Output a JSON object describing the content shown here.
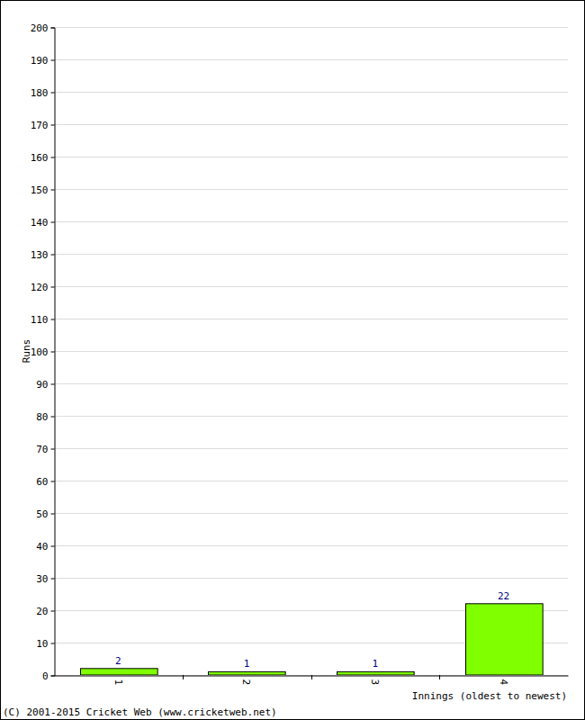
{
  "chart_data": {
    "type": "bar",
    "x_label": "Innings (oldest to newest)",
    "y_label": "Runs",
    "annotation": "(C) 2001-2015 Cricket Web (www.cricketweb.net)",
    "categories": [
      "1",
      "2",
      "3",
      "4"
    ],
    "values": [
      2,
      1,
      1,
      22
    ],
    "color": "#80ff00",
    "ylim": [
      0,
      200
    ],
    "yticks": [
      0,
      10,
      20,
      30,
      40,
      50,
      60,
      70,
      80,
      90,
      100,
      110,
      120,
      130,
      140,
      150,
      160,
      170,
      180,
      190,
      200
    ],
    "grid": true,
    "data_labels": true
  }
}
